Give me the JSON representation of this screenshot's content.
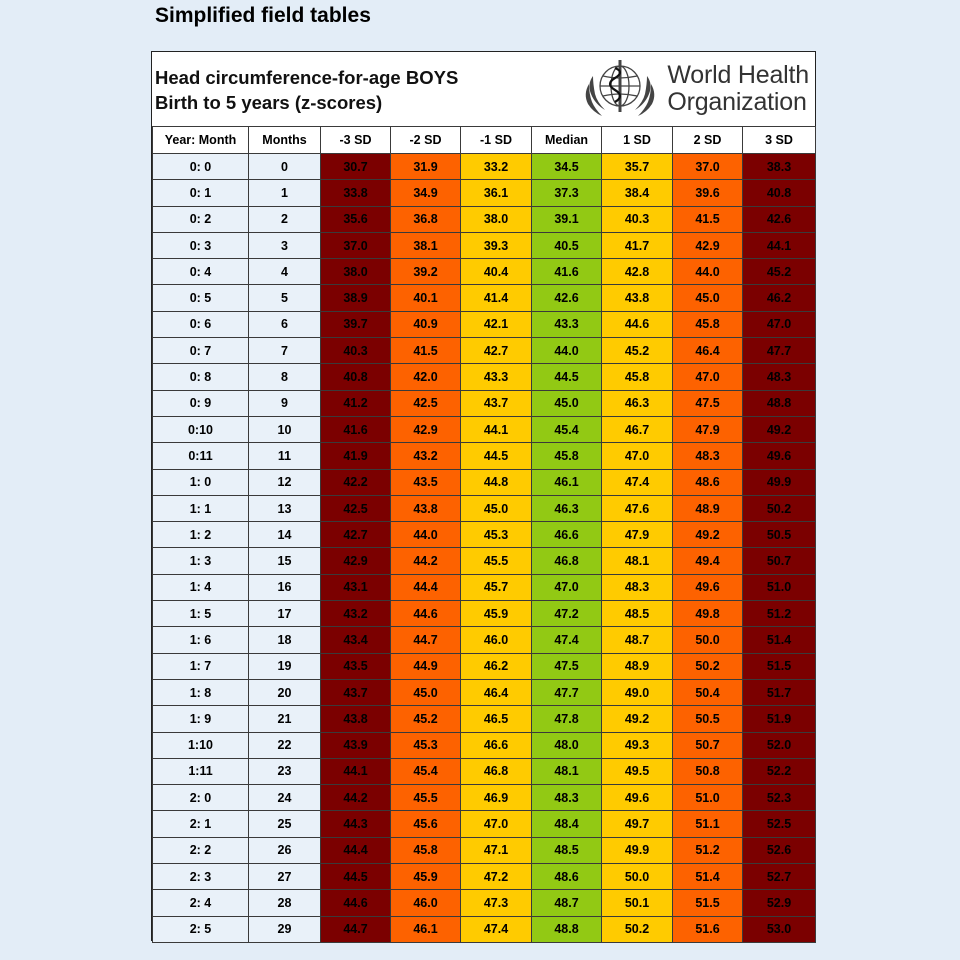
{
  "page_heading": "Simplified field tables",
  "title_line1": "Head circumference-for-age BOYS",
  "title_line2": "Birth to 5 years (z-scores)",
  "logo": {
    "line1": "World Health",
    "line2": "Organization",
    "icon": "who-emblem-icon"
  },
  "colors": {
    "sd3": "#7b0000",
    "sd2": "#fd6200",
    "sd1": "#ffcb00",
    "median": "#92c914",
    "age_cells": "#e9f1f9"
  },
  "columns": [
    "Year: Month",
    "Months",
    "-3 SD",
    "-2 SD",
    "-1 SD",
    "Median",
    "1 SD",
    "2 SD",
    "3 SD"
  ],
  "rows": [
    [
      "0: 0",
      "0",
      "30.7",
      "31.9",
      "33.2",
      "34.5",
      "35.7",
      "37.0",
      "38.3"
    ],
    [
      "0: 1",
      "1",
      "33.8",
      "34.9",
      "36.1",
      "37.3",
      "38.4",
      "39.6",
      "40.8"
    ],
    [
      "0: 2",
      "2",
      "35.6",
      "36.8",
      "38.0",
      "39.1",
      "40.3",
      "41.5",
      "42.6"
    ],
    [
      "0: 3",
      "3",
      "37.0",
      "38.1",
      "39.3",
      "40.5",
      "41.7",
      "42.9",
      "44.1"
    ],
    [
      "0: 4",
      "4",
      "38.0",
      "39.2",
      "40.4",
      "41.6",
      "42.8",
      "44.0",
      "45.2"
    ],
    [
      "0: 5",
      "5",
      "38.9",
      "40.1",
      "41.4",
      "42.6",
      "43.8",
      "45.0",
      "46.2"
    ],
    [
      "0: 6",
      "6",
      "39.7",
      "40.9",
      "42.1",
      "43.3",
      "44.6",
      "45.8",
      "47.0"
    ],
    [
      "0: 7",
      "7",
      "40.3",
      "41.5",
      "42.7",
      "44.0",
      "45.2",
      "46.4",
      "47.7"
    ],
    [
      "0: 8",
      "8",
      "40.8",
      "42.0",
      "43.3",
      "44.5",
      "45.8",
      "47.0",
      "48.3"
    ],
    [
      "0: 9",
      "9",
      "41.2",
      "42.5",
      "43.7",
      "45.0",
      "46.3",
      "47.5",
      "48.8"
    ],
    [
      "0:10",
      "10",
      "41.6",
      "42.9",
      "44.1",
      "45.4",
      "46.7",
      "47.9",
      "49.2"
    ],
    [
      "0:11",
      "11",
      "41.9",
      "43.2",
      "44.5",
      "45.8",
      "47.0",
      "48.3",
      "49.6"
    ],
    [
      "1: 0",
      "12",
      "42.2",
      "43.5",
      "44.8",
      "46.1",
      "47.4",
      "48.6",
      "49.9"
    ],
    [
      "1: 1",
      "13",
      "42.5",
      "43.8",
      "45.0",
      "46.3",
      "47.6",
      "48.9",
      "50.2"
    ],
    [
      "1: 2",
      "14",
      "42.7",
      "44.0",
      "45.3",
      "46.6",
      "47.9",
      "49.2",
      "50.5"
    ],
    [
      "1: 3",
      "15",
      "42.9",
      "44.2",
      "45.5",
      "46.8",
      "48.1",
      "49.4",
      "50.7"
    ],
    [
      "1: 4",
      "16",
      "43.1",
      "44.4",
      "45.7",
      "47.0",
      "48.3",
      "49.6",
      "51.0"
    ],
    [
      "1: 5",
      "17",
      "43.2",
      "44.6",
      "45.9",
      "47.2",
      "48.5",
      "49.8",
      "51.2"
    ],
    [
      "1: 6",
      "18",
      "43.4",
      "44.7",
      "46.0",
      "47.4",
      "48.7",
      "50.0",
      "51.4"
    ],
    [
      "1: 7",
      "19",
      "43.5",
      "44.9",
      "46.2",
      "47.5",
      "48.9",
      "50.2",
      "51.5"
    ],
    [
      "1: 8",
      "20",
      "43.7",
      "45.0",
      "46.4",
      "47.7",
      "49.0",
      "50.4",
      "51.7"
    ],
    [
      "1: 9",
      "21",
      "43.8",
      "45.2",
      "46.5",
      "47.8",
      "49.2",
      "50.5",
      "51.9"
    ],
    [
      "1:10",
      "22",
      "43.9",
      "45.3",
      "46.6",
      "48.0",
      "49.3",
      "50.7",
      "52.0"
    ],
    [
      "1:11",
      "23",
      "44.1",
      "45.4",
      "46.8",
      "48.1",
      "49.5",
      "50.8",
      "52.2"
    ],
    [
      "2: 0",
      "24",
      "44.2",
      "45.5",
      "46.9",
      "48.3",
      "49.6",
      "51.0",
      "52.3"
    ],
    [
      "2: 1",
      "25",
      "44.3",
      "45.6",
      "47.0",
      "48.4",
      "49.7",
      "51.1",
      "52.5"
    ],
    [
      "2: 2",
      "26",
      "44.4",
      "45.8",
      "47.1",
      "48.5",
      "49.9",
      "51.2",
      "52.6"
    ],
    [
      "2: 3",
      "27",
      "44.5",
      "45.9",
      "47.2",
      "48.6",
      "50.0",
      "51.4",
      "52.7"
    ],
    [
      "2: 4",
      "28",
      "44.6",
      "46.0",
      "47.3",
      "48.7",
      "50.1",
      "51.5",
      "52.9"
    ],
    [
      "2: 5",
      "29",
      "44.7",
      "46.1",
      "47.4",
      "48.8",
      "50.2",
      "51.6",
      "53.0"
    ]
  ]
}
